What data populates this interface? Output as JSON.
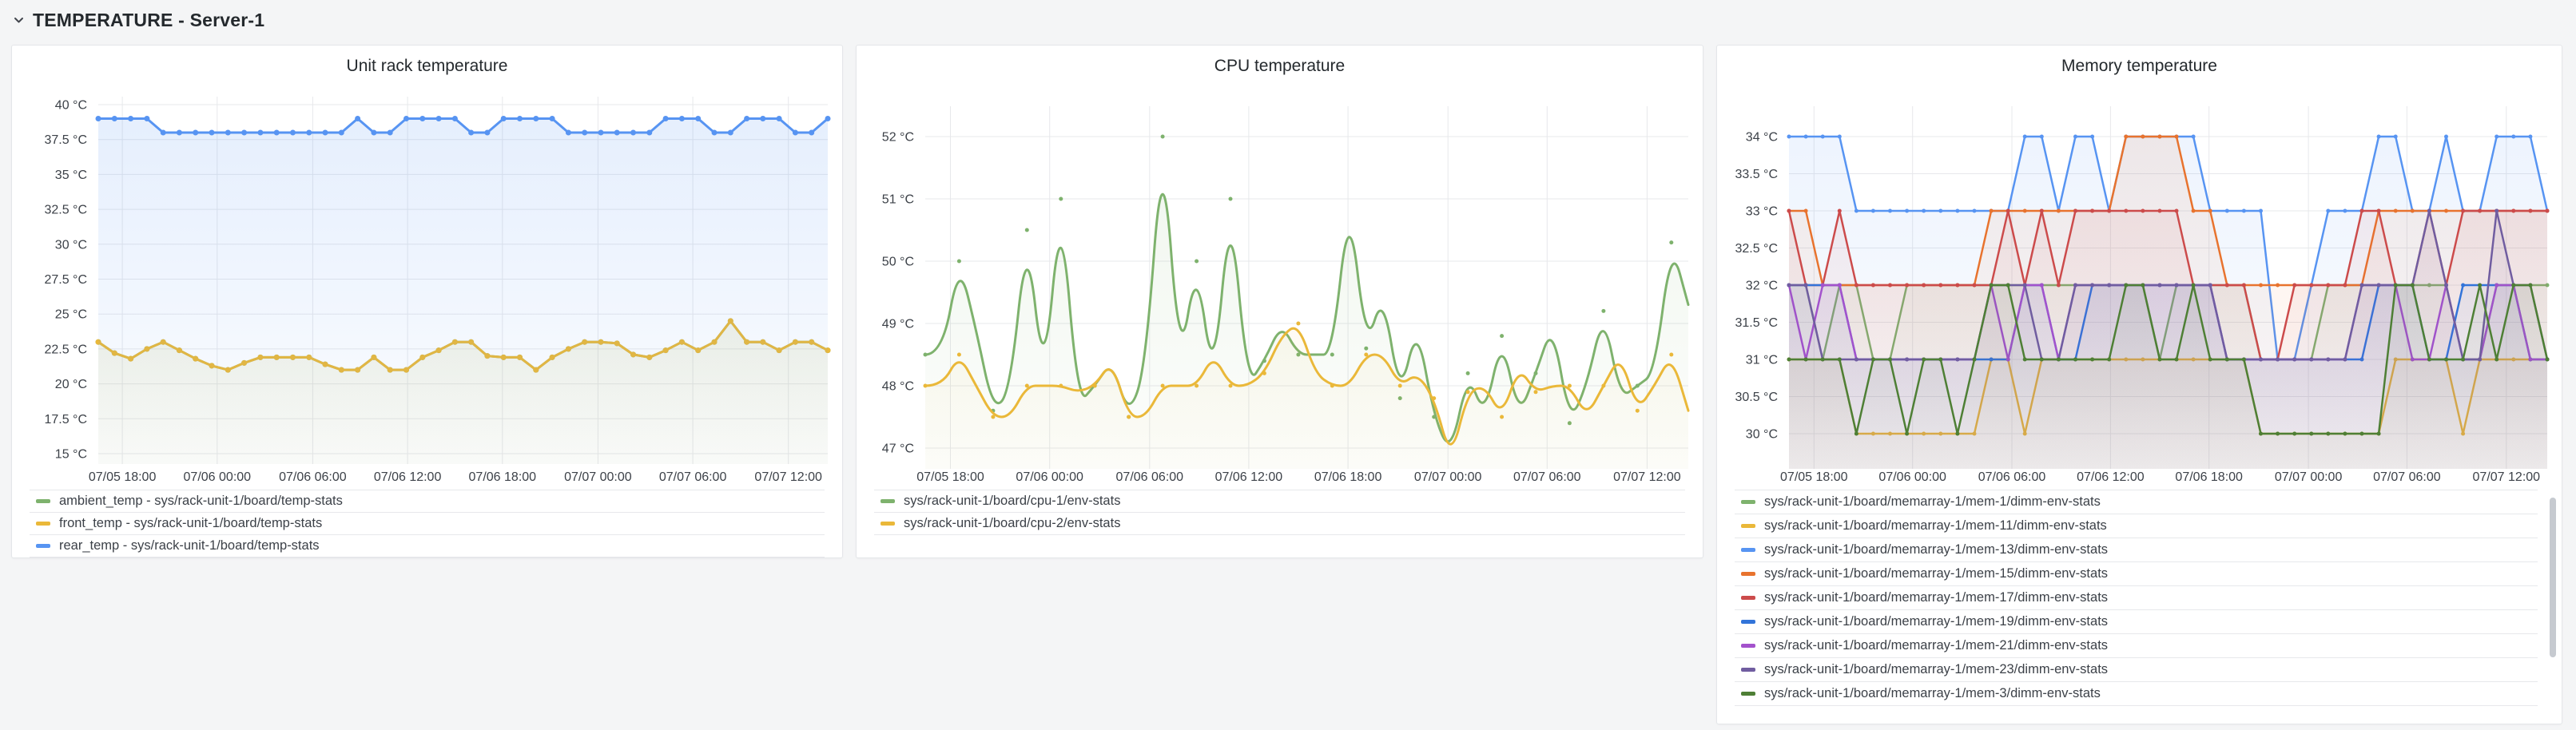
{
  "header": {
    "title": "TEMPERATURE - Server-1",
    "collapse_icon": "chevron-down"
  },
  "colors": {
    "green": "#7EB26D",
    "yellow": "#EAB839",
    "blue": "#5794F2",
    "orange": "#E8732E",
    "red": "#CC4B4B",
    "blue2": "#3274D9",
    "purple": "#A352CC",
    "slate": "#705DA0",
    "darkgreen": "#4E7F35",
    "grid": "#e7e8eb",
    "axis_text": "#3c4148"
  },
  "chart_data": [
    {
      "type": "line",
      "title": "Unit rack temperature",
      "ylabel": "°C",
      "ylim": [
        15,
        40
      ],
      "grid": true,
      "legend_position": "bottom",
      "y_ticks": [
        40,
        37.5,
        35,
        32.5,
        30,
        27.5,
        25,
        22.5,
        20,
        17.5,
        15
      ],
      "y_tick_labels": [
        "40 °C",
        "37.5 °C",
        "35 °C",
        "32.5 °C",
        "30 °C",
        "27.5 °C",
        "25 °C",
        "22.5 °C",
        "20 °C",
        "17.5 °C",
        "15 °C"
      ],
      "x_tick_labels": [
        "07/05 18:00",
        "07/06 00:00",
        "07/06 06:00",
        "07/06 12:00",
        "07/06 18:00",
        "07/07 00:00",
        "07/07 06:00",
        "07/07 12:00"
      ],
      "series": [
        {
          "name": "ambient_temp - sys/rack-unit-1/board/temp-stats",
          "color": "green",
          "values": [
            23,
            22.2,
            21.8,
            22.5,
            23,
            22.4,
            21.8,
            21.3,
            21,
            21.5,
            21.9,
            21.9,
            21.9,
            21.9,
            21.4,
            21,
            21,
            21.9,
            21,
            21,
            21.9,
            22.4,
            23,
            23,
            22,
            21.9,
            21.9,
            21,
            21.9,
            22.5,
            23,
            23,
            22.9,
            22.1,
            21.9,
            22.4,
            23,
            22.4,
            23,
            24.5,
            23,
            23,
            22.4,
            23,
            23,
            22.4
          ]
        },
        {
          "name": "front_temp - sys/rack-unit-1/board/temp-stats",
          "color": "yellow",
          "values": [
            23,
            22.2,
            21.8,
            22.5,
            23,
            22.4,
            21.8,
            21.3,
            21,
            21.5,
            21.9,
            21.9,
            21.9,
            21.9,
            21.4,
            21,
            21,
            21.9,
            21,
            21,
            21.9,
            22.4,
            23,
            23,
            22,
            21.9,
            21.9,
            21,
            21.9,
            22.5,
            23,
            23,
            22.9,
            22.1,
            21.9,
            22.4,
            23,
            22.4,
            23,
            24.5,
            23,
            23,
            22.4,
            23,
            23,
            22.4
          ]
        },
        {
          "name": "rear_temp - sys/rack-unit-1/board/temp-stats",
          "color": "blue",
          "values": [
            39,
            39,
            39,
            39,
            38,
            38,
            38,
            38,
            38,
            38,
            38,
            38,
            38,
            38,
            38,
            38,
            39,
            38,
            38,
            39,
            39,
            39,
            39,
            38,
            38,
            39,
            39,
            39,
            39,
            38,
            38,
            38,
            38,
            38,
            38,
            39,
            39,
            39,
            38,
            38,
            39,
            39,
            39,
            38,
            38,
            39
          ]
        }
      ]
    },
    {
      "type": "line",
      "title": "CPU temperature",
      "ylabel": "°C",
      "ylim": [
        47,
        52
      ],
      "grid": true,
      "legend_position": "bottom",
      "y_ticks": [
        52,
        51,
        50,
        49,
        48,
        47
      ],
      "y_tick_labels": [
        "52 °C",
        "51 °C",
        "50 °C",
        "49 °C",
        "48 °C",
        "47 °C"
      ],
      "x_tick_labels": [
        "07/05 18:00",
        "07/06 00:00",
        "07/06 06:00",
        "07/06 12:00",
        "07/06 18:00",
        "07/07 00:00",
        "07/07 06:00",
        "07/07 12:00"
      ],
      "series": [
        {
          "name": "sys/rack-unit-1/board/cpu-1/env-stats",
          "color": "green",
          "values": [
            48.5,
            48.5,
            50,
            48.9,
            47.6,
            47.9,
            50.5,
            48,
            51,
            47.7,
            48,
            48.4,
            47.5,
            48.3,
            52,
            48.3,
            50,
            48,
            51,
            48,
            48.4,
            49,
            48.5,
            48.5,
            48.5,
            51,
            48.6,
            49.5,
            47.8,
            49,
            47.5,
            46.9,
            48.2,
            47.5,
            48.8,
            47.5,
            48.2,
            49,
            47.4,
            48,
            49.2,
            47.8,
            48,
            48.2,
            50.3,
            49.3
          ]
        },
        {
          "name": "sys/rack-unit-1/board/cpu-2/env-stats",
          "color": "yellow",
          "values": [
            48,
            48,
            48.5,
            48,
            47.5,
            47.5,
            48,
            48,
            48,
            47.9,
            48,
            48.4,
            47.5,
            47.5,
            48,
            48,
            48,
            48.5,
            48,
            48,
            48.2,
            48.8,
            49,
            48.2,
            48,
            48,
            48.5,
            48.5,
            48,
            48.2,
            47.8,
            46.8,
            47.9,
            48,
            47.5,
            48.3,
            47.9,
            48,
            48,
            47.5,
            48,
            48.5,
            47.6,
            48,
            48.5,
            47.6
          ]
        }
      ]
    },
    {
      "type": "line",
      "title": "Memory temperature",
      "ylabel": "°C",
      "ylim": [
        30,
        34
      ],
      "grid": true,
      "legend_position": "bottom",
      "y_ticks": [
        34,
        33.5,
        33,
        32.5,
        32,
        31.5,
        31,
        30.5,
        30
      ],
      "y_tick_labels": [
        "34 °C",
        "33.5 °C",
        "33 °C",
        "32.5 °C",
        "32 °C",
        "31.5 °C",
        "31 °C",
        "30.5 °C",
        "30 °C"
      ],
      "x_tick_labels": [
        "07/05 18:00",
        "07/06 00:00",
        "07/06 06:00",
        "07/06 12:00",
        "07/06 18:00",
        "07/07 00:00",
        "07/07 06:00",
        "07/07 12:00"
      ],
      "series": [
        {
          "name": "sys/rack-unit-1/board/memarray-1/mem-1/dimm-env-stats",
          "color": "green",
          "values": [
            32,
            32,
            31,
            32,
            32,
            31,
            31,
            32,
            32,
            32,
            32,
            32,
            32,
            32,
            32,
            32,
            32,
            32,
            32,
            32,
            32,
            32,
            31,
            32,
            32,
            32,
            32,
            32,
            31,
            31,
            31,
            31,
            32,
            32,
            32,
            32,
            32,
            32,
            32,
            32,
            31,
            31,
            32,
            32,
            32,
            32
          ]
        },
        {
          "name": "sys/rack-unit-1/board/memarray-1/mem-11/dimm-env-stats",
          "color": "yellow",
          "values": [
            31,
            31,
            31,
            31,
            30,
            30,
            30,
            30,
            30,
            30,
            30,
            30,
            31,
            31,
            30,
            31,
            31,
            31,
            31,
            31,
            31,
            31,
            31,
            31,
            31,
            31,
            31,
            31,
            30,
            30,
            30,
            30,
            30,
            30,
            30,
            30,
            31,
            31,
            31,
            31,
            30,
            31,
            31,
            31,
            31,
            31
          ]
        },
        {
          "name": "sys/rack-unit-1/board/memarray-1/mem-13/dimm-env-stats",
          "color": "blue",
          "values": [
            34,
            34,
            34,
            34,
            33,
            33,
            33,
            33,
            33,
            33,
            33,
            33,
            33,
            33,
            34,
            34,
            33,
            34,
            34,
            33,
            34,
            34,
            34,
            34,
            34,
            33,
            33,
            33,
            33,
            31,
            31,
            32,
            33,
            33,
            33,
            34,
            34,
            33,
            33,
            34,
            33,
            33,
            34,
            34,
            34,
            33
          ]
        },
        {
          "name": "sys/rack-unit-1/board/memarray-1/mem-15/dimm-env-stats",
          "color": "orange",
          "values": [
            33,
            33,
            32,
            32,
            32,
            32,
            32,
            32,
            32,
            32,
            32,
            32,
            33,
            33,
            33,
            33,
            33,
            33,
            33,
            33,
            34,
            34,
            34,
            34,
            33,
            33,
            32,
            32,
            32,
            32,
            32,
            32,
            32,
            32,
            32,
            33,
            33,
            33,
            33,
            33,
            33,
            33,
            33,
            33,
            33,
            33
          ]
        },
        {
          "name": "sys/rack-unit-1/board/memarray-1/mem-17/dimm-env-stats",
          "color": "red",
          "values": [
            33,
            32,
            32,
            33,
            32,
            32,
            32,
            32,
            32,
            32,
            32,
            32,
            32,
            33,
            32,
            33,
            32,
            33,
            33,
            33,
            33,
            33,
            33,
            33,
            32,
            32,
            32,
            32,
            31,
            31,
            32,
            32,
            32,
            32,
            33,
            33,
            32,
            32,
            33,
            32,
            33,
            33,
            33,
            33,
            33,
            33
          ]
        },
        {
          "name": "sys/rack-unit-1/board/memarray-1/mem-19/dimm-env-stats",
          "color": "blue2",
          "values": [
            32,
            32,
            32,
            32,
            31,
            31,
            31,
            31,
            31,
            31,
            31,
            31,
            31,
            31,
            32,
            32,
            31,
            31,
            32,
            32,
            32,
            32,
            32,
            32,
            32,
            32,
            31,
            31,
            31,
            31,
            31,
            31,
            31,
            31,
            31,
            32,
            32,
            32,
            31,
            31,
            32,
            32,
            32,
            32,
            31,
            31
          ]
        },
        {
          "name": "sys/rack-unit-1/board/memarray-1/mem-21/dimm-env-stats",
          "color": "purple",
          "values": [
            32,
            31,
            32,
            32,
            31,
            31,
            31,
            31,
            31,
            31,
            31,
            31,
            32,
            31,
            32,
            32,
            31,
            32,
            32,
            32,
            32,
            32,
            32,
            32,
            32,
            32,
            31,
            31,
            31,
            31,
            31,
            31,
            31,
            31,
            32,
            32,
            32,
            31,
            31,
            32,
            31,
            31,
            32,
            32,
            31,
            31
          ]
        },
        {
          "name": "sys/rack-unit-1/board/memarray-1/mem-23/dimm-env-stats",
          "color": "slate",
          "values": [
            32,
            32,
            31,
            31,
            31,
            31,
            31,
            31,
            31,
            31,
            31,
            31,
            32,
            32,
            32,
            31,
            31,
            32,
            32,
            32,
            32,
            32,
            32,
            32,
            32,
            32,
            31,
            31,
            31,
            31,
            31,
            31,
            31,
            31,
            32,
            32,
            32,
            32,
            33,
            32,
            31,
            31,
            33,
            32,
            32,
            31
          ]
        },
        {
          "name": "sys/rack-unit-1/board/memarray-1/mem-3/dimm-env-stats",
          "color": "darkgreen",
          "values": [
            31,
            31,
            31,
            31,
            30,
            31,
            31,
            30,
            31,
            31,
            30,
            31,
            32,
            32,
            31,
            31,
            31,
            31,
            31,
            31,
            32,
            32,
            31,
            31,
            32,
            31,
            31,
            31,
            30,
            30,
            30,
            30,
            30,
            30,
            30,
            30,
            32,
            32,
            31,
            31,
            31,
            32,
            31,
            32,
            32,
            31
          ]
        }
      ]
    }
  ]
}
